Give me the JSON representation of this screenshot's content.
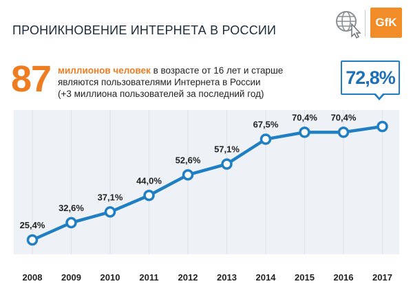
{
  "header": {
    "title": "ПРОНИКНОВЕНИЕ ИНТЕРНЕТА В РОССИИ",
    "logo_text": "GfK"
  },
  "headline": {
    "big_number": "87",
    "highlight": "миллионов человек",
    "rest_line1": " в возрасте от 16 лет и старше",
    "line2": "являются пользователями Интернета в России",
    "line3": "(+3 миллиона пользователей за последний год)"
  },
  "icons": [
    "globe-cursor-icon"
  ],
  "colors": {
    "accent_orange": "#ee7d22",
    "line_blue": "#1f7fc2",
    "grid": "#dde3ea"
  },
  "chart_data": {
    "type": "line",
    "categories": [
      "2008",
      "2009",
      "2010",
      "2011",
      "2012",
      "2013",
      "2014",
      "2015",
      "2016",
      "2017"
    ],
    "series": [
      {
        "values": [
          25.4,
          32.6,
          37.1,
          44.0,
          52.6,
          57.1,
          67.5,
          70.4,
          70.4,
          72.8
        ]
      }
    ],
    "data_labels": [
      "25,4%",
      "32,6%",
      "37,1%",
      "44,0%",
      "52,6%",
      "57,1%",
      "67,5%",
      "70,4%",
      "70,4%",
      "72,8%"
    ],
    "ylim": [
      20,
      80
    ],
    "grid": "vertical",
    "title": "",
    "xlabel": "",
    "ylabel": ""
  }
}
